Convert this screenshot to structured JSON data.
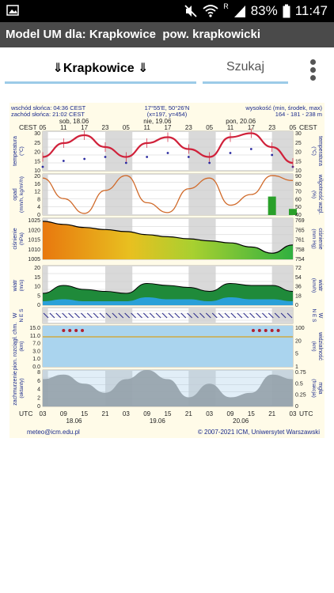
{
  "status_bar": {
    "battery": "83%",
    "time": "11:47",
    "signal_tag": "R",
    "icons": [
      "image-icon",
      "mute-icon",
      "wifi-icon",
      "signal-icon",
      "battery-icon"
    ]
  },
  "app_bar": {
    "title": "Model UM dla: Krapkowice  pow. krapkowicki"
  },
  "tabs": {
    "main_label": "⇓Krapkowice ⇓",
    "search_label": "Szukaj"
  },
  "meteogram": {
    "sunrise": "wschód słońca: 04:36 CEST",
    "sunset": "zachód słońca: 21:02 CEST",
    "coords": "17°55'E, 50°26'N",
    "grid": "(x=197, y=454)",
    "height_label": "wysokość (min, środek, max)",
    "height_values": "164 - 181 - 238 m",
    "days_top": [
      "sob, 18.06",
      "nie, 19.06",
      "pon, 20.06"
    ],
    "days_bottom": [
      "18.06",
      "19.06",
      "20.06"
    ],
    "hours_top": [
      "05",
      "11",
      "17",
      "23",
      "05",
      "11",
      "17",
      "23",
      "05",
      "11",
      "17",
      "23",
      "05"
    ],
    "hours_bottom": [
      "03",
      "09",
      "15",
      "21",
      "03",
      "09",
      "15",
      "21",
      "03",
      "09",
      "15",
      "21",
      "03"
    ],
    "cest_label": "CEST",
    "utc_label": "UTC",
    "footer_left": "meteo@icm.edu.pl",
    "footer_right": "© 2007-2021 ICM, Uniwersytet Warszawski",
    "panels": [
      {
        "left": "temperatura",
        "left_unit": "(°C)",
        "right": "temperatura",
        "right_unit": "(°C)",
        "ticks_left": [
          "30",
          "25",
          "20",
          "15",
          "10"
        ],
        "ticks_right": [
          "30",
          "25",
          "20",
          "15",
          "10"
        ]
      },
      {
        "left": "opad",
        "left_unit": "(mm/h, kg/m²/h)",
        "right": "wilgotność wzgl.",
        "right_unit": "(%)",
        "ticks_left": [
          "20",
          "16",
          "12",
          "8",
          "4",
          "0"
        ],
        "ticks_right": [
          "90",
          "80",
          "70",
          "60",
          "50",
          "40"
        ]
      },
      {
        "left": "ciśnienie",
        "left_unit": "(hPa)",
        "right": "ciśnienie",
        "right_unit": "(mm Hg)",
        "ticks_left": [
          "1025",
          "1020",
          "1015",
          "1010",
          "1005"
        ],
        "ticks_right": [
          "769",
          "765",
          "761",
          "758",
          "754"
        ]
      },
      {
        "left": "wiatr",
        "left_unit": "(m/s)",
        "right": "wiatr",
        "right_unit": "(km/h)",
        "ticks_left": [
          "20",
          "15",
          "10",
          "5",
          "0"
        ],
        "ticks_right": [
          "72",
          "54",
          "36",
          "18",
          "0"
        ]
      },
      {
        "left": "W",
        "left_unit": "N E S",
        "right": "W",
        "right_unit": "N E S",
        "ticks_left": [],
        "ticks_right": []
      },
      {
        "left": "pion. rozciągł. chm.",
        "left_unit": "(km)",
        "right": "widzialność",
        "right_unit": "(km)",
        "ticks_left": [
          "15.0",
          "11.0",
          "7.0",
          "3.0",
          "1.0",
          "0.0"
        ],
        "ticks_right": [
          "100",
          "20",
          "5",
          "1"
        ]
      },
      {
        "left": "zachmurzenie",
        "left_unit": "(oktanty)",
        "right": "mgła",
        "right_unit": "(frakcja)",
        "ticks_left": [
          "8",
          "6",
          "4",
          "2",
          "0"
        ],
        "ticks_right": [
          "0.75",
          "0.5",
          "0.25",
          "0"
        ]
      }
    ]
  },
  "chart_data": [
    {
      "type": "line",
      "x": [
        "05",
        "11",
        "17",
        "23",
        "05",
        "11",
        "17",
        "23",
        "05",
        "11",
        "17",
        "23",
        "05"
      ],
      "series": [
        {
          "values": [
            17,
            24,
            28,
            22,
            17,
            24,
            27,
            21,
            17,
            27,
            29,
            22,
            14
          ]
        },
        {
          "values": [
            12,
            15,
            16,
            17,
            14,
            17,
            19,
            17,
            14,
            19,
            21,
            18,
            12
          ]
        }
      ],
      "ylim": [
        10,
        30
      ]
    },
    {
      "type": "line",
      "x": [
        "05",
        "11",
        "17",
        "23",
        "05",
        "11",
        "17",
        "23",
        "05",
        "11",
        "17",
        "23",
        "05"
      ],
      "series": [
        {
          "values": [
            85,
            60,
            42,
            70,
            88,
            55,
            43,
            72,
            85,
            52,
            65,
            88,
            82
          ]
        },
        {
          "values": [
            0,
            0,
            0,
            0,
            0,
            0,
            0,
            0,
            0,
            0,
            0,
            3,
            1
          ]
        }
      ],
      "ylim": [
        40,
        90
      ]
    },
    {
      "type": "area",
      "x": [
        "05",
        "11",
        "17",
        "23",
        "05",
        "11",
        "17",
        "23",
        "05",
        "11",
        "17",
        "23",
        "05"
      ],
      "series": [
        {
          "values": [
            1023.5,
            1022,
            1020.5,
            1019.5,
            1018.5,
            1017,
            1016,
            1015,
            1014,
            1013,
            1011,
            1008,
            1012
          ]
        }
      ],
      "ylim": [
        1005,
        1025
      ]
    },
    {
      "type": "area",
      "x": [
        "05",
        "11",
        "17",
        "23",
        "05",
        "11",
        "17",
        "23",
        "05",
        "11",
        "17",
        "23",
        "05"
      ],
      "series": [
        {
          "values": [
            2,
            3,
            2,
            2,
            2,
            4,
            3,
            3,
            2,
            4,
            3,
            3,
            2
          ]
        },
        {
          "values": [
            6,
            10,
            8,
            7,
            6,
            11,
            10,
            9,
            7,
            11,
            10,
            10,
            7
          ]
        }
      ],
      "ylim": [
        0,
        20
      ]
    },
    {
      "type": "area",
      "x": [
        "05",
        "11",
        "17",
        "23",
        "05",
        "11",
        "17",
        "23",
        "05",
        "11",
        "17",
        "23",
        "05"
      ],
      "series": [
        {
          "values": [
            6,
            7,
            5,
            3,
            6,
            8,
            6,
            2,
            5,
            2,
            3,
            7,
            6
          ]
        }
      ],
      "ylim": [
        0,
        8
      ]
    }
  ]
}
